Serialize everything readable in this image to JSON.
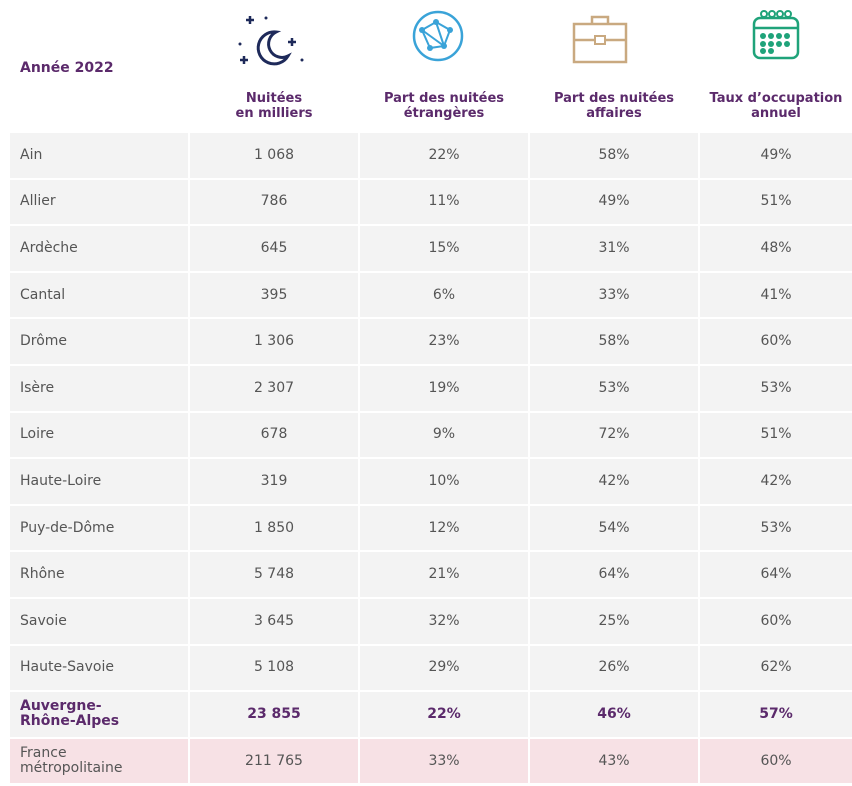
{
  "header": {
    "title": "Année 2022",
    "columns": [
      "Nuitées\nen milliers",
      "Part des nuitées\nétrangères",
      "Part des nuitées\naffaires",
      "Taux d’occupation\nannuel"
    ]
  },
  "table": {
    "rows": [
      [
        "Ain",
        "1 068",
        "22%",
        "58%",
        "49%"
      ],
      [
        "Allier",
        "786",
        "11%",
        "49%",
        "51%"
      ],
      [
        "Ardèche",
        "645",
        "15%",
        "31%",
        "48%"
      ],
      [
        "Cantal",
        "395",
        "6%",
        "33%",
        "41%"
      ],
      [
        "Drôme",
        "1 306",
        "23%",
        "58%",
        "60%"
      ],
      [
        "Isère",
        "2 307",
        "19%",
        "53%",
        "53%"
      ],
      [
        "Loire",
        "678",
        "9%",
        "72%",
        "51%"
      ],
      [
        "Haute-Loire",
        "319",
        "10%",
        "42%",
        "42%"
      ],
      [
        "Puy-de-Dôme",
        "1 850",
        "12%",
        "54%",
        "53%"
      ],
      [
        "Rhône",
        "5 748",
        "21%",
        "64%",
        "64%"
      ],
      [
        "Savoie",
        "3 645",
        "32%",
        "25%",
        "60%"
      ],
      [
        "Haute-Savoie",
        "5 108",
        "29%",
        "26%",
        "62%"
      ],
      [
        "Auvergne-\nRhône-Alpes",
        "23 855",
        "22%",
        "46%",
        "57%"
      ],
      [
        "France\nmétropolitaine",
        "211 765",
        "33%",
        "43%",
        "60%"
      ]
    ]
  }
}
